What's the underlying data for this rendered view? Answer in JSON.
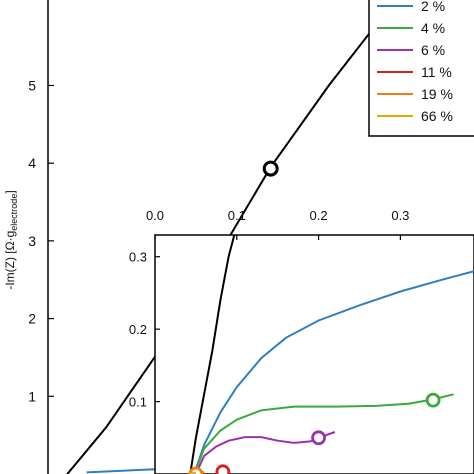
{
  "chart_data": [
    {
      "type": "line",
      "role": "main",
      "ylabel_prefix": "-Im(Z) [Ω·g",
      "ylabel_sub": "electrode",
      "ylabel_suffix": "]",
      "ylim": [
        0,
        6.1
      ],
      "yticks": [
        1,
        2,
        3,
        4,
        5
      ],
      "xlim": [
        0,
        2.2
      ],
      "series": [
        {
          "name": "",
          "color": "#000000",
          "x": [
            0.0,
            0.3,
            0.55,
            0.9,
            1.15,
            1.45,
            1.7,
            1.85
          ],
          "y": [
            -0.3,
            0.6,
            1.5,
            2.9,
            3.95,
            5.0,
            5.8,
            6.1
          ],
          "marker": [
            1.15,
            3.93
          ]
        },
        {
          "name": "",
          "color": "#2f7fc1",
          "x": [
            0.2,
            0.55,
            0.9,
            1.08
          ],
          "y": [
            0.02,
            0.06,
            0.12,
            0.15
          ],
          "marker": [
            0.9,
            0.1
          ]
        }
      ],
      "legend": {
        "placement": "top-right",
        "entries": [
          {
            "label": "2 %",
            "color": "#2f7fc1"
          },
          {
            "label": "4 %",
            "color": "#3aaa3a"
          },
          {
            "label": "6 %",
            "color": "#9b30b0"
          },
          {
            "label": "11 %",
            "color": "#d42020"
          },
          {
            "label": "19 %",
            "color": "#f07f10"
          },
          {
            "label": "66 %",
            "color": "#e8a800"
          }
        ]
      }
    },
    {
      "type": "line",
      "role": "inset",
      "xlim": [
        0,
        0.39
      ],
      "ylim": [
        0,
        0.33
      ],
      "xticks": [
        0.0,
        0.1,
        0.2,
        0.3
      ],
      "yticks": [
        0.1,
        0.2,
        0.3
      ],
      "xtick_labels": [
        "0.0",
        "0.1",
        "0.2",
        "0.3"
      ],
      "ytick_labels": [
        "0.1",
        "0.2",
        "0.3"
      ],
      "series": [
        {
          "name": "",
          "color": "#000000",
          "x": [
            0.043,
            0.05,
            0.06,
            0.07,
            0.08,
            0.09,
            0.097
          ],
          "y": [
            0.0,
            0.05,
            0.11,
            0.17,
            0.24,
            0.3,
            0.33
          ]
        },
        {
          "name": "",
          "color": "#2f7fc1",
          "x": [
            0.048,
            0.06,
            0.08,
            0.1,
            0.13,
            0.16,
            0.2,
            0.25,
            0.3,
            0.35,
            0.39
          ],
          "y": [
            0.0,
            0.04,
            0.085,
            0.12,
            0.16,
            0.188,
            0.212,
            0.233,
            0.252,
            0.268,
            0.28
          ]
        },
        {
          "name": "",
          "color": "#3aaa3a",
          "x": [
            0.048,
            0.06,
            0.08,
            0.1,
            0.13,
            0.17,
            0.22,
            0.27,
            0.31,
            0.34,
            0.365
          ],
          "y": [
            0.0,
            0.035,
            0.06,
            0.075,
            0.088,
            0.093,
            0.093,
            0.094,
            0.097,
            0.103,
            0.11
          ],
          "marker": [
            0.34,
            0.102
          ]
        },
        {
          "name": "",
          "color": "#9b30b0",
          "x": [
            0.05,
            0.06,
            0.075,
            0.09,
            0.11,
            0.13,
            0.15,
            0.17,
            0.19,
            0.2,
            0.22
          ],
          "y": [
            0.0,
            0.025,
            0.038,
            0.046,
            0.051,
            0.051,
            0.046,
            0.043,
            0.045,
            0.05,
            0.058
          ],
          "marker": [
            0.2,
            0.05
          ]
        },
        {
          "name": "",
          "color": "#d42020",
          "x": [
            0.075,
            0.08,
            0.085,
            0.09
          ],
          "y": [
            0.0,
            0.005,
            0.006,
            0.003
          ],
          "marker": [
            0.083,
            0.003
          ]
        },
        {
          "name": "",
          "color": "#f07f10",
          "x": [
            0.045,
            0.05,
            0.055,
            0.06
          ],
          "y": [
            0.0,
            0.003,
            0.004,
            0.002
          ],
          "marker": [
            0.05,
            0.0
          ]
        },
        {
          "name": "",
          "color": "#e8a800",
          "x": [
            0.042,
            0.046,
            0.05
          ],
          "y": [
            0.0,
            0.002,
            0.001
          ]
        }
      ]
    }
  ]
}
